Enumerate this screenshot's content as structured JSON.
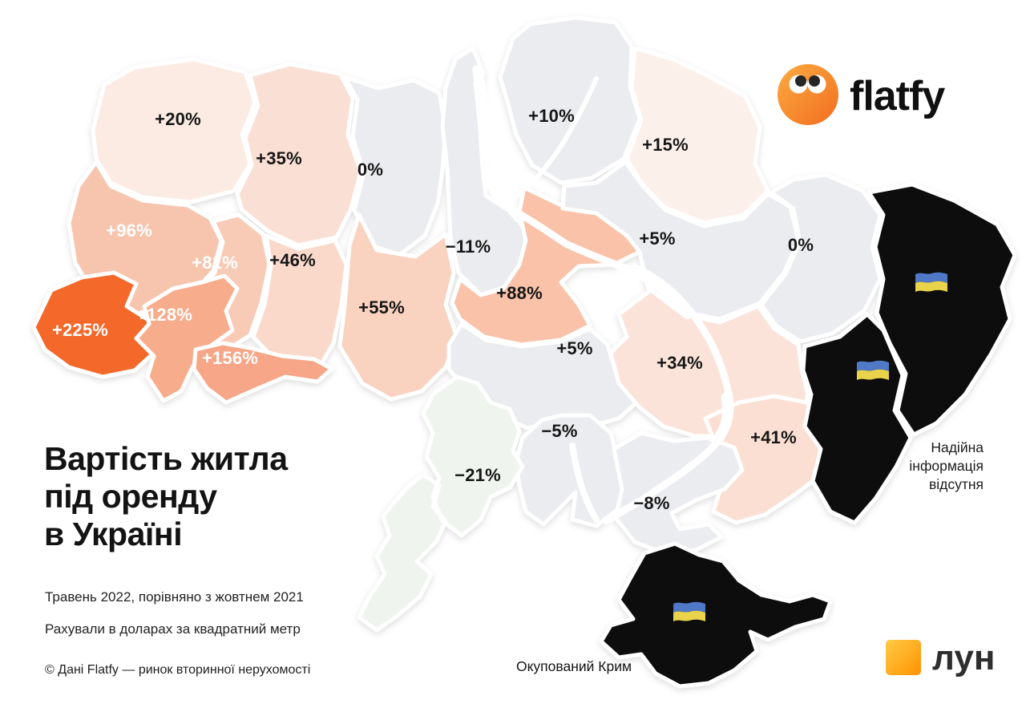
{
  "brand": {
    "logo_text": "flatfy",
    "footer_logo_text": "лун"
  },
  "title": {
    "line1": "Вартість житла",
    "line2": "під оренду",
    "line3": "в Україні"
  },
  "notes": {
    "period": "Травень 2022, порівняно з жовтнем 2021",
    "method": "Рахували в доларах за квадратний метр",
    "copyright": "© Дані Flatfy — ринок вторинної нерухомості"
  },
  "annotations": {
    "no_data_lines": [
      "Надійна",
      "інформація",
      "відсутня"
    ],
    "crimea_label": "Окупований Крим"
  },
  "colors": {
    "background": "#FFFFFF",
    "border": "#FFFFFF",
    "no_data_fill": "#0A0A0A",
    "flag_blue": "#4F79C6",
    "flag_yellow": "#E8D34B",
    "flatfy_orange_top": "#FBAC40",
    "flatfy_orange_bottom": "#F26D21",
    "lun_orange_top": "#FFCB45",
    "lun_orange_bottom": "#FF9202"
  },
  "chart_data": {
    "type": "choropleth",
    "title": "Вартість житла під оренду в Україні",
    "subtitle": "Травень 2022, порівняно з жовтнем 2021",
    "unit": "зміна ціни оренди, долари за квадратний метр",
    "no_data_note": "Надійна інформація відсутня",
    "regions": [
      {
        "id": "volyn",
        "name": "Волинська",
        "value": "+20%",
        "fill": "#FBEBE3",
        "label_color": "#161616"
      },
      {
        "id": "rivne",
        "name": "Рівненська",
        "value": "+35%",
        "fill": "#FADFD4",
        "label_color": "#161616"
      },
      {
        "id": "zhytomyr",
        "name": "Житомирська",
        "value": "0%",
        "fill": "#EBECEF",
        "label_color": "#161616"
      },
      {
        "id": "kyiv",
        "name": "Київська",
        "value": "−11%",
        "fill": "#EBECEF",
        "label_color": "#161616"
      },
      {
        "id": "chernihiv",
        "name": "Чернігівська",
        "value": "+10%",
        "fill": "#EBECEF",
        "label_color": "#161616"
      },
      {
        "id": "sumy",
        "name": "Сумська",
        "value": "+15%",
        "fill": "#FCF0EB",
        "label_color": "#161616"
      },
      {
        "id": "lviv",
        "name": "Львівська",
        "value": "+96%",
        "fill": "#F7C5AE",
        "label_color": "#FFFFFF"
      },
      {
        "id": "ternopil",
        "name": "Тернопільська",
        "value": "+81%",
        "fill": "#F8CBB6",
        "label_color": "#FFFFFF"
      },
      {
        "id": "khmelnytskyi",
        "name": "Хмельницька",
        "value": "+46%",
        "fill": "#FAD9CB",
        "label_color": "#161616"
      },
      {
        "id": "vinnytsia",
        "name": "Вінницька",
        "value": "+55%",
        "fill": "#F9D2C0",
        "label_color": "#161616"
      },
      {
        "id": "cherkasy",
        "name": "Черкаська",
        "value": "+88%",
        "fill": "#F9C2A9",
        "label_color": "#161616"
      },
      {
        "id": "poltava",
        "name": "Полтавська",
        "value": "+5%",
        "fill": "#EBECEF",
        "label_color": "#161616"
      },
      {
        "id": "kharkiv",
        "name": "Харківська",
        "value": "0%",
        "fill": "#EBECEF",
        "label_color": "#161616"
      },
      {
        "id": "zakarpattia",
        "name": "Закарпатська",
        "value": "+225%",
        "fill": "#F4682C",
        "label_color": "#FFFFFF"
      },
      {
        "id": "ivano_frankivsk",
        "name": "Івано-Франківська",
        "value": "+128%",
        "fill": "#F7AD8C",
        "label_color": "#FFFFFF"
      },
      {
        "id": "chernivtsi",
        "name": "Чернівецька",
        "value": "+156%",
        "fill": "#F7A687",
        "label_color": "#FFFFFF"
      },
      {
        "id": "kirovohrad",
        "name": "Кіровоградська",
        "value": "+5%",
        "fill": "#EBECEF",
        "label_color": "#161616"
      },
      {
        "id": "dnipro",
        "name": "Дніпропетровська",
        "value": "+34%",
        "fill": "#FBE3D9",
        "label_color": "#161616"
      },
      {
        "id": "zaporizhzhia",
        "name": "Запорізька",
        "value": "+41%",
        "fill": "#FBDFD3",
        "label_color": "#161616"
      },
      {
        "id": "mykolaiv",
        "name": "Миколаївська",
        "value": "−5%",
        "fill": "#EBECEF",
        "label_color": "#161616"
      },
      {
        "id": "odesa",
        "name": "Одеська",
        "value": "−21%",
        "fill": "#EFF5EE",
        "label_color": "#161616"
      },
      {
        "id": "kherson",
        "name": "Херсонська",
        "value": "−8%",
        "fill": "#EBECEF",
        "label_color": "#161616"
      },
      {
        "id": "luhansk",
        "name": "Луганська",
        "value": null,
        "fill": "#0A0A0A",
        "no_data": true
      },
      {
        "id": "donetsk",
        "name": "Донецька",
        "value": null,
        "fill": "#0A0A0A",
        "no_data": true
      },
      {
        "id": "crimea",
        "name": "Окупований Крим",
        "value": null,
        "fill": "#0A0A0A",
        "no_data": true
      }
    ]
  }
}
